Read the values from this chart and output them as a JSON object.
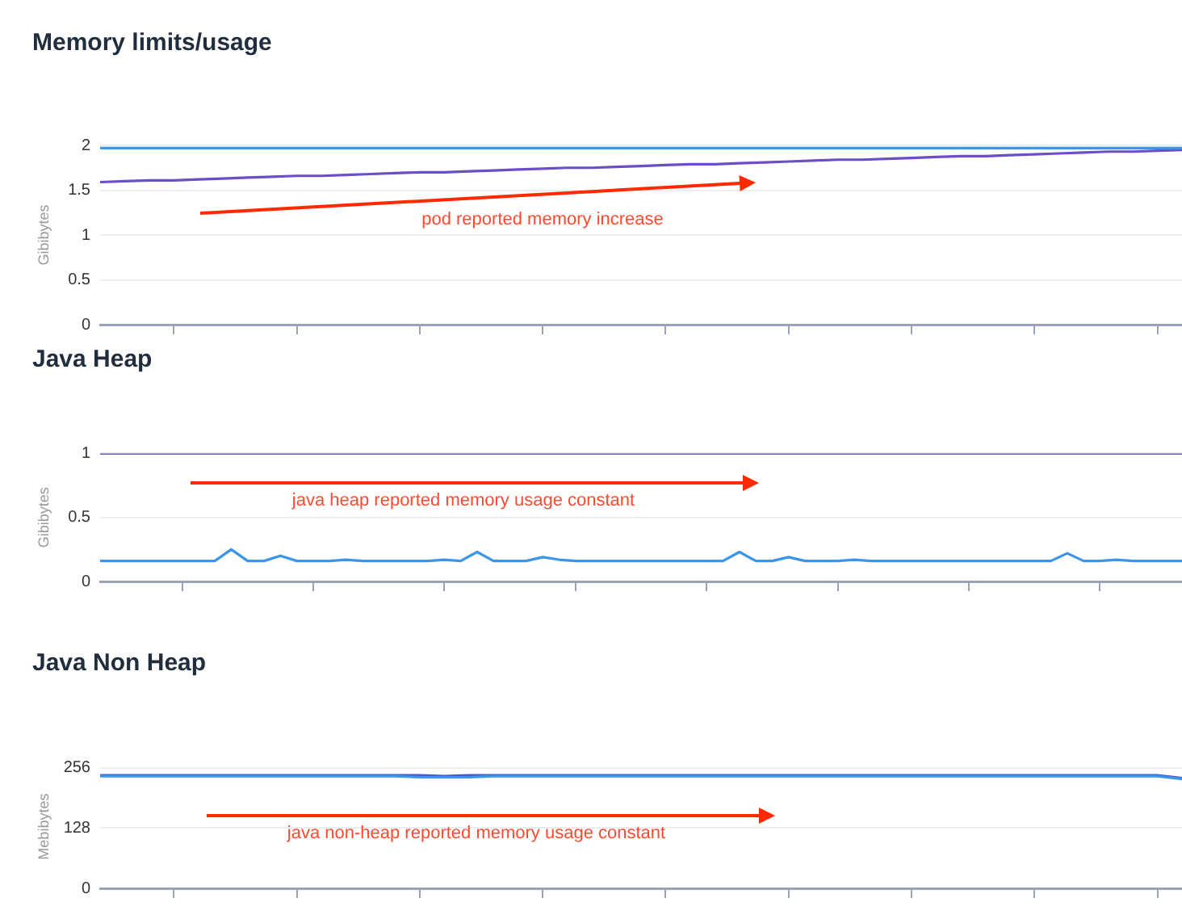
{
  "chart_data": [
    {
      "type": "line",
      "title": "Memory limits/usage",
      "ylabel": "Gibibytes",
      "grid": "y",
      "ylim": [
        0,
        2
      ],
      "yticks": [
        0,
        0.5,
        1,
        1.5,
        2
      ],
      "annotations": [
        "pod reported memory increase"
      ],
      "categories": [
        null,
        null,
        null,
        null,
        null,
        null,
        null,
        null,
        null,
        null,
        null,
        null,
        null,
        null,
        null,
        null,
        null,
        null,
        null,
        null,
        null,
        null,
        null,
        null,
        null,
        null,
        null,
        null,
        null,
        null,
        null,
        null,
        null,
        null,
        null,
        null,
        null,
        null,
        null,
        null,
        null,
        null,
        null,
        null,
        null
      ],
      "series": [
        {
          "color": "#3b95e8",
          "values": [
            1.97,
            1.97,
            1.97,
            1.97,
            1.97,
            1.97,
            1.97,
            1.97,
            1.97,
            1.97,
            1.97,
            1.97,
            1.97,
            1.97,
            1.97,
            1.97,
            1.97,
            1.97,
            1.97,
            1.97,
            1.97,
            1.97,
            1.97,
            1.97,
            1.97,
            1.97,
            1.97,
            1.97,
            1.97,
            1.97,
            1.97,
            1.97,
            1.97,
            1.97,
            1.97,
            1.97,
            1.97,
            1.97,
            1.97,
            1.97,
            1.97,
            1.97,
            1.97,
            1.97,
            1.97
          ]
        },
        {
          "color": "#6a4fc9",
          "values": [
            1.59,
            1.6,
            1.61,
            1.61,
            1.62,
            1.63,
            1.64,
            1.65,
            1.66,
            1.66,
            1.67,
            1.68,
            1.69,
            1.7,
            1.7,
            1.71,
            1.72,
            1.73,
            1.74,
            1.75,
            1.75,
            1.76,
            1.77,
            1.78,
            1.79,
            1.79,
            1.8,
            1.81,
            1.82,
            1.83,
            1.84,
            1.84,
            1.85,
            1.86,
            1.87,
            1.88,
            1.88,
            1.89,
            1.9,
            1.91,
            1.92,
            1.93,
            1.93,
            1.94,
            1.95
          ]
        }
      ]
    },
    {
      "type": "line",
      "title": "Java Heap",
      "ylabel": "Gibibytes",
      "grid": "y",
      "ylim": [
        0,
        1
      ],
      "yticks": [
        0,
        0.5,
        1
      ],
      "annotations": [
        "java heap reported memory usage constant"
      ],
      "categories": [
        null,
        null,
        null,
        null,
        null,
        null,
        null,
        null,
        null,
        null,
        null,
        null,
        null,
        null,
        null,
        null,
        null,
        null,
        null,
        null,
        null,
        null,
        null,
        null,
        null,
        null,
        null,
        null,
        null,
        null,
        null,
        null,
        null,
        null,
        null,
        null,
        null,
        null,
        null,
        null,
        null,
        null,
        null,
        null,
        null,
        null,
        null,
        null,
        null,
        null,
        null,
        null,
        null,
        null,
        null,
        null,
        null,
        null,
        null,
        null,
        null,
        null,
        null,
        null,
        null,
        null,
        null
      ],
      "series": [
        {
          "color": "#6b55c8",
          "values": [
            1,
            1,
            1,
            1,
            1,
            1,
            1,
            1,
            1,
            1,
            1,
            1,
            1,
            1,
            1,
            1,
            1,
            1,
            1,
            1,
            1,
            1,
            1,
            1,
            1,
            1,
            1,
            1,
            1,
            1,
            1,
            1,
            1,
            1,
            1,
            1,
            1,
            1,
            1,
            1,
            1,
            1,
            1,
            1,
            1,
            1,
            1,
            1,
            1,
            1,
            1,
            1,
            1,
            1,
            1,
            1,
            1,
            1,
            1,
            1,
            1,
            1,
            1,
            1,
            1,
            1,
            1
          ]
        },
        {
          "color": "#3b95e8",
          "values": [
            0.16,
            0.16,
            0.16,
            0.16,
            0.16,
            0.16,
            0.16,
            0.16,
            0.25,
            0.16,
            0.16,
            0.2,
            0.16,
            0.16,
            0.16,
            0.17,
            0.16,
            0.16,
            0.16,
            0.16,
            0.16,
            0.17,
            0.16,
            0.23,
            0.16,
            0.16,
            0.16,
            0.19,
            0.17,
            0.16,
            0.16,
            0.16,
            0.16,
            0.16,
            0.16,
            0.16,
            0.16,
            0.16,
            0.16,
            0.23,
            0.16,
            0.16,
            0.19,
            0.16,
            0.16,
            0.16,
            0.17,
            0.16,
            0.16,
            0.16,
            0.16,
            0.16,
            0.16,
            0.16,
            0.16,
            0.16,
            0.16,
            0.16,
            0.16,
            0.22,
            0.16,
            0.16,
            0.17,
            0.16,
            0.16,
            0.16,
            0.16
          ]
        }
      ]
    },
    {
      "type": "line",
      "title": "Java Non Heap",
      "ylabel": "Mebibytes",
      "grid": "y",
      "ylim": [
        0,
        262
      ],
      "yticks": [
        0,
        128,
        256
      ],
      "annotations": [
        "java non-heap reported memory usage constant"
      ],
      "categories": [
        null,
        null,
        null,
        null,
        null,
        null,
        null,
        null,
        null,
        null,
        null,
        null,
        null,
        null,
        null,
        null,
        null,
        null,
        null,
        null,
        null,
        null,
        null,
        null,
        null,
        null,
        null,
        null,
        null,
        null,
        null,
        null,
        null,
        null,
        null,
        null,
        null,
        null,
        null,
        null,
        null,
        null,
        null,
        null,
        null
      ],
      "series": [
        {
          "color": "#3b95e8",
          "values": [
            238,
            238,
            238,
            238,
            238,
            238,
            238,
            238,
            238,
            238,
            238,
            238,
            238,
            236,
            236,
            236,
            238,
            238,
            238,
            238,
            238,
            238,
            238,
            238,
            238,
            238,
            238,
            238,
            238,
            238,
            238,
            238,
            238,
            238,
            238,
            238,
            238,
            238,
            238,
            238,
            238,
            238,
            238,
            238,
            232
          ]
        },
        {
          "color": "#4a4fc8",
          "values": [
            240,
            240,
            240,
            240,
            240,
            240,
            240,
            240,
            240,
            240,
            240,
            240,
            240,
            240,
            238,
            240,
            240,
            240,
            240,
            240,
            240,
            240,
            240,
            240,
            240,
            240,
            240,
            240,
            240,
            240,
            240,
            240,
            240,
            240,
            240,
            240,
            240,
            240,
            240,
            240,
            240,
            240,
            240,
            240,
            234
          ]
        }
      ]
    }
  ]
}
